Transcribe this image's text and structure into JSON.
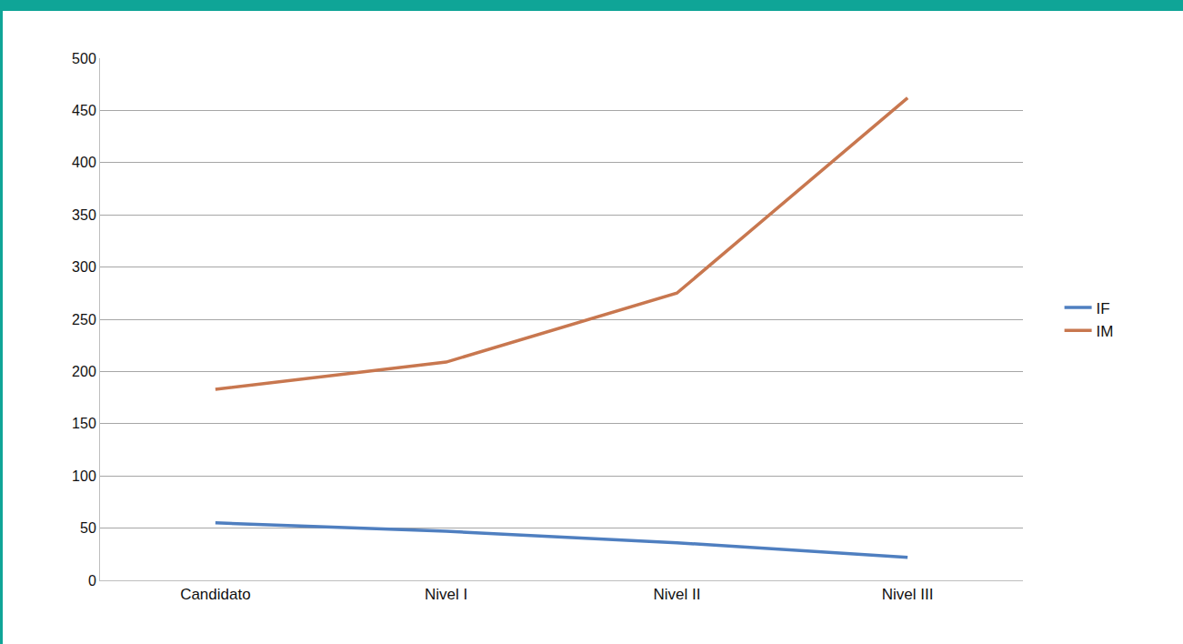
{
  "chart_data": {
    "type": "line",
    "categories": [
      "Candidato",
      "Nivel I",
      "Nivel II",
      "Nivel III"
    ],
    "series": [
      {
        "name": "IF",
        "color": "#4f7fc0",
        "values": [
          55,
          47,
          36,
          22
        ]
      },
      {
        "name": "IM",
        "color": "#c8774f",
        "values": [
          183,
          209,
          275,
          462
        ]
      }
    ],
    "ylim": [
      0,
      500
    ],
    "yticks": [
      0,
      50,
      100,
      150,
      200,
      250,
      300,
      350,
      400,
      450,
      500
    ],
    "grid": true,
    "legend": "right"
  }
}
